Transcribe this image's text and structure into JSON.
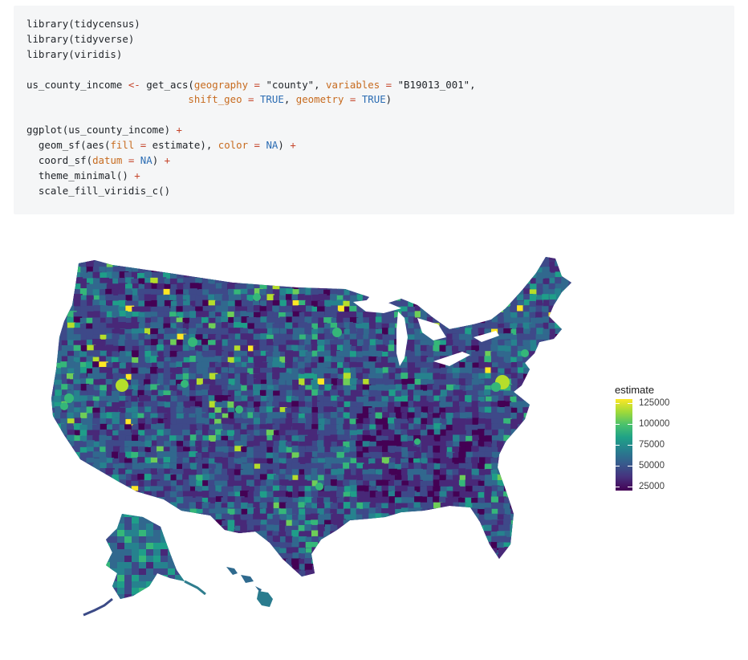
{
  "code": {
    "lines": [
      [
        {
          "t": "fn",
          "v": "library(tidycensus)"
        }
      ],
      [
        {
          "t": "fn",
          "v": "library(tidyverse)"
        }
      ],
      [
        {
          "t": "fn",
          "v": "library(viridis)"
        }
      ],
      [
        {
          "t": "fn",
          "v": ""
        }
      ],
      [
        {
          "t": "fn",
          "v": "us_county_income "
        },
        {
          "t": "op",
          "v": "<-"
        },
        {
          "t": "fn",
          "v": " get_acs("
        },
        {
          "t": "arg",
          "v": "geography"
        },
        {
          "t": "fn",
          "v": " "
        },
        {
          "t": "op",
          "v": "="
        },
        {
          "t": "fn",
          "v": " "
        },
        {
          "t": "str",
          "v": "\"county\""
        },
        {
          "t": "fn",
          "v": ", "
        },
        {
          "t": "arg",
          "v": "variables"
        },
        {
          "t": "fn",
          "v": " "
        },
        {
          "t": "op",
          "v": "="
        },
        {
          "t": "fn",
          "v": " "
        },
        {
          "t": "str",
          "v": "\"B19013_001\""
        },
        {
          "t": "fn",
          "v": ","
        }
      ],
      [
        {
          "t": "fn",
          "v": "                           "
        },
        {
          "t": "arg",
          "v": "shift_geo"
        },
        {
          "t": "fn",
          "v": " "
        },
        {
          "t": "op",
          "v": "="
        },
        {
          "t": "fn",
          "v": " "
        },
        {
          "t": "const",
          "v": "TRUE"
        },
        {
          "t": "fn",
          "v": ", "
        },
        {
          "t": "arg",
          "v": "geometry"
        },
        {
          "t": "fn",
          "v": " "
        },
        {
          "t": "op",
          "v": "="
        },
        {
          "t": "fn",
          "v": " "
        },
        {
          "t": "const",
          "v": "TRUE"
        },
        {
          "t": "fn",
          "v": ")"
        }
      ],
      [
        {
          "t": "fn",
          "v": ""
        }
      ],
      [
        {
          "t": "fn",
          "v": "ggplot(us_county_income) "
        },
        {
          "t": "op",
          "v": "+"
        }
      ],
      [
        {
          "t": "fn",
          "v": "  geom_sf(aes("
        },
        {
          "t": "arg",
          "v": "fill"
        },
        {
          "t": "fn",
          "v": " "
        },
        {
          "t": "op",
          "v": "="
        },
        {
          "t": "fn",
          "v": " estimate), "
        },
        {
          "t": "arg",
          "v": "color"
        },
        {
          "t": "fn",
          "v": " "
        },
        {
          "t": "op",
          "v": "="
        },
        {
          "t": "fn",
          "v": " "
        },
        {
          "t": "const",
          "v": "NA"
        },
        {
          "t": "fn",
          "v": ") "
        },
        {
          "t": "op",
          "v": "+"
        }
      ],
      [
        {
          "t": "fn",
          "v": "  coord_sf("
        },
        {
          "t": "arg",
          "v": "datum"
        },
        {
          "t": "fn",
          "v": " "
        },
        {
          "t": "op",
          "v": "="
        },
        {
          "t": "fn",
          "v": " "
        },
        {
          "t": "const",
          "v": "NA"
        },
        {
          "t": "fn",
          "v": ") "
        },
        {
          "t": "op",
          "v": "+"
        }
      ],
      [
        {
          "t": "fn",
          "v": "  theme_minimal() "
        },
        {
          "t": "op",
          "v": "+"
        }
      ],
      [
        {
          "t": "fn",
          "v": "  scale_fill_viridis_c()"
        }
      ]
    ]
  },
  "legend": {
    "title": "estimate",
    "labels": [
      {
        "value": 125000,
        "text": "125000"
      },
      {
        "value": 100000,
        "text": "100000"
      },
      {
        "value": 75000,
        "text": "75000"
      },
      {
        "value": 50000,
        "text": "50000"
      },
      {
        "value": 25000,
        "text": "25000"
      }
    ],
    "range": [
      20000,
      130000
    ]
  },
  "map": {
    "palette": [
      "#440154",
      "#482878",
      "#3e4989",
      "#31688e",
      "#26828e",
      "#1f9e89",
      "#35b779",
      "#6ece58",
      "#b5de2b",
      "#fde725"
    ],
    "base_color": "#3b4a86"
  }
}
